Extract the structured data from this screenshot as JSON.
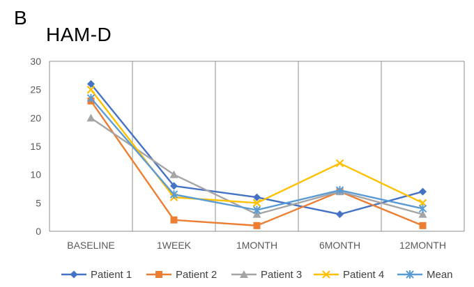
{
  "panel_label": "B",
  "chart_data": {
    "type": "line",
    "title": "HAM-D",
    "xlabel": "",
    "ylabel": "",
    "categories": [
      "BASELINE",
      "1WEEK",
      "1MONTH",
      "6MONTH",
      "12MONTH"
    ],
    "ylim": [
      0,
      30
    ],
    "yticks": [
      0,
      5,
      10,
      15,
      20,
      25,
      30
    ],
    "grid": "vertical lines between categories",
    "legend_position": "bottom",
    "series": [
      {
        "name": "Patient 1",
        "color": "#4472C4",
        "marker": "diamond",
        "values": [
          26,
          8,
          6,
          3,
          7
        ]
      },
      {
        "name": "Patient 2",
        "color": "#ED7D31",
        "marker": "square",
        "values": [
          23,
          2,
          1,
          7,
          1
        ]
      },
      {
        "name": "Patient 3",
        "color": "#A5A5A5",
        "marker": "triangle",
        "values": [
          20,
          10,
          3,
          7,
          3
        ]
      },
      {
        "name": "Patient 4",
        "color": "#FFC000",
        "marker": "x",
        "values": [
          25,
          6,
          5,
          12,
          5
        ]
      },
      {
        "name": "Mean",
        "color": "#5B9BD5",
        "marker": "star",
        "values": [
          23.5,
          6.5,
          3.75,
          7.25,
          4
        ]
      }
    ]
  }
}
